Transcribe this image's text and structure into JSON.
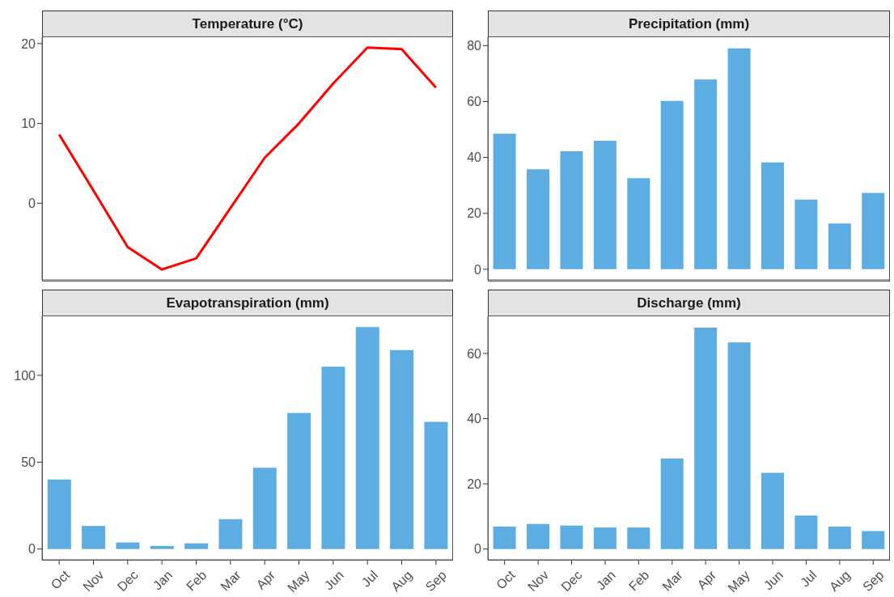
{
  "chart_data": [
    {
      "type": "line",
      "title": "Temperature (°C)",
      "categories": [
        null,
        null,
        null,
        null,
        null,
        null,
        null,
        null,
        null,
        null,
        null,
        null
      ],
      "values": [
        8.6,
        1.6,
        -5.5,
        -8.3,
        -6.9,
        -0.6,
        5.7,
        10.0,
        15.0,
        19.5,
        19.3,
        14.5
      ],
      "color": "#ff0000",
      "ylim": [
        -9.6,
        20.8
      ],
      "yticks": [
        0,
        10,
        20
      ],
      "tick_labels": "y"
    },
    {
      "type": "bar",
      "title": "Precipitation (mm)",
      "categories": [
        null,
        null,
        null,
        null,
        null,
        null,
        null,
        null,
        null,
        null,
        null,
        null
      ],
      "values": [
        48.5,
        35.8,
        42.2,
        46,
        32.6,
        60.2,
        67.9,
        79,
        38.2,
        24.9,
        16.4,
        27.3
      ],
      "color": "#5dade2",
      "ylim": [
        -3.8,
        83
      ],
      "yticks": [
        0,
        20,
        40,
        60,
        80
      ],
      "tick_labels": "y"
    },
    {
      "type": "bar",
      "title": "Evapotranspiration (mm)",
      "categories": [
        "Oct",
        "Nov",
        "Dec",
        "Jan",
        "Feb",
        "Mar",
        "Apr",
        "May",
        "Jun",
        "Jul",
        "Aug",
        "Sep"
      ],
      "values": [
        40,
        13.3,
        3.8,
        1.8,
        3.3,
        17.2,
        46.8,
        78.3,
        105,
        127.8,
        114.5,
        73.2
      ],
      "color": "#5dade2",
      "ylim": [
        -6.2,
        134
      ],
      "yticks": [
        0,
        50,
        100
      ]
    },
    {
      "type": "bar",
      "title": "Discharge (mm)",
      "categories": [
        "Oct",
        "Nov",
        "Dec",
        "Jan",
        "Feb",
        "Mar",
        "Apr",
        "May",
        "Jun",
        "Jul",
        "Aug",
        "Sep"
      ],
      "values": [
        6.9,
        7.7,
        7.2,
        6.6,
        6.6,
        27.8,
        67.9,
        63.4,
        23.4,
        10.3,
        6.9,
        5.5
      ],
      "color": "#5dade2",
      "ylim": [
        -3.3,
        71.4
      ],
      "yticks": [
        0,
        20,
        40,
        60
      ]
    }
  ]
}
